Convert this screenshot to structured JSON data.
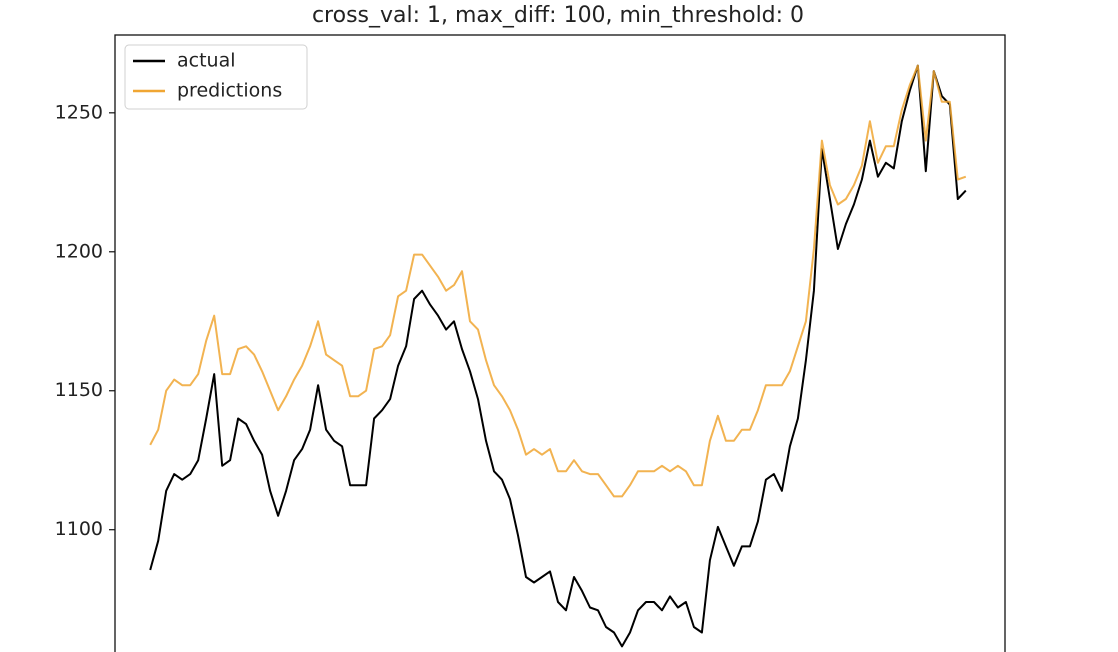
{
  "chart_data": {
    "type": "line",
    "title": "cross_val: 1, max_diff: 100, min_threshold: 0",
    "xlim": [
      -4.4,
      106.9
    ],
    "ylim": [
      1056,
      1278
    ],
    "yticks": [
      1100,
      1150,
      1200,
      1250
    ],
    "legend": "upper left",
    "series": [
      {
        "name": "actual",
        "color": "#000000",
        "values": [
          1085.5,
          1096,
          1114,
          1120,
          1118,
          1120,
          1125,
          1140,
          1156,
          1123,
          1125,
          1140,
          1138,
          1132,
          1127,
          1114,
          1105,
          1114,
          1125,
          1129,
          1136,
          1152,
          1136,
          1132,
          1130,
          1116,
          1116,
          1116,
          1140,
          1143,
          1147,
          1159,
          1166,
          1183,
          1186,
          1181,
          1177,
          1172,
          1175,
          1165,
          1157,
          1147,
          1132,
          1121,
          1118,
          1111,
          1098,
          1083,
          1081,
          1083,
          1085,
          1074,
          1071,
          1083,
          1078,
          1072,
          1071,
          1065,
          1063,
          1058,
          1063,
          1071,
          1074,
          1074,
          1071,
          1076,
          1072,
          1074,
          1065,
          1063,
          1089,
          1101,
          1094,
          1087,
          1094,
          1094,
          1103,
          1118,
          1120,
          1114,
          1130,
          1140,
          1161,
          1186,
          1237,
          1219,
          1201,
          1210,
          1217,
          1226,
          1240,
          1227,
          1232,
          1230,
          1247,
          1258,
          1267,
          1229,
          1265,
          1256,
          1253,
          1219,
          1222
        ]
      },
      {
        "name": "predictions",
        "color": "#f0a633",
        "values": [
          1130.5,
          1136,
          1150,
          1154,
          1152,
          1152,
          1156,
          1168,
          1177,
          1156,
          1156,
          1165,
          1166,
          1163,
          1157,
          1150,
          1143,
          1148,
          1154,
          1159,
          1166,
          1175,
          1163,
          1161,
          1159,
          1148,
          1148,
          1150,
          1165,
          1166,
          1170,
          1184,
          1186,
          1199,
          1199,
          1195,
          1191,
          1186,
          1188,
          1193,
          1175,
          1172,
          1161,
          1152,
          1148,
          1143,
          1136,
          1127,
          1129,
          1127,
          1129,
          1121,
          1121,
          1125,
          1121,
          1120,
          1120,
          1116,
          1112,
          1112,
          1116,
          1121,
          1121,
          1121,
          1123,
          1121,
          1123,
          1121,
          1116,
          1116,
          1132,
          1141,
          1132,
          1132,
          1136,
          1136,
          1143,
          1152,
          1152,
          1152,
          1157,
          1166,
          1175,
          1201,
          1240,
          1224,
          1217,
          1219,
          1224,
          1231,
          1247,
          1232,
          1238,
          1238,
          1251,
          1260,
          1267,
          1240,
          1265,
          1254,
          1254,
          1226,
          1227
        ]
      }
    ]
  }
}
